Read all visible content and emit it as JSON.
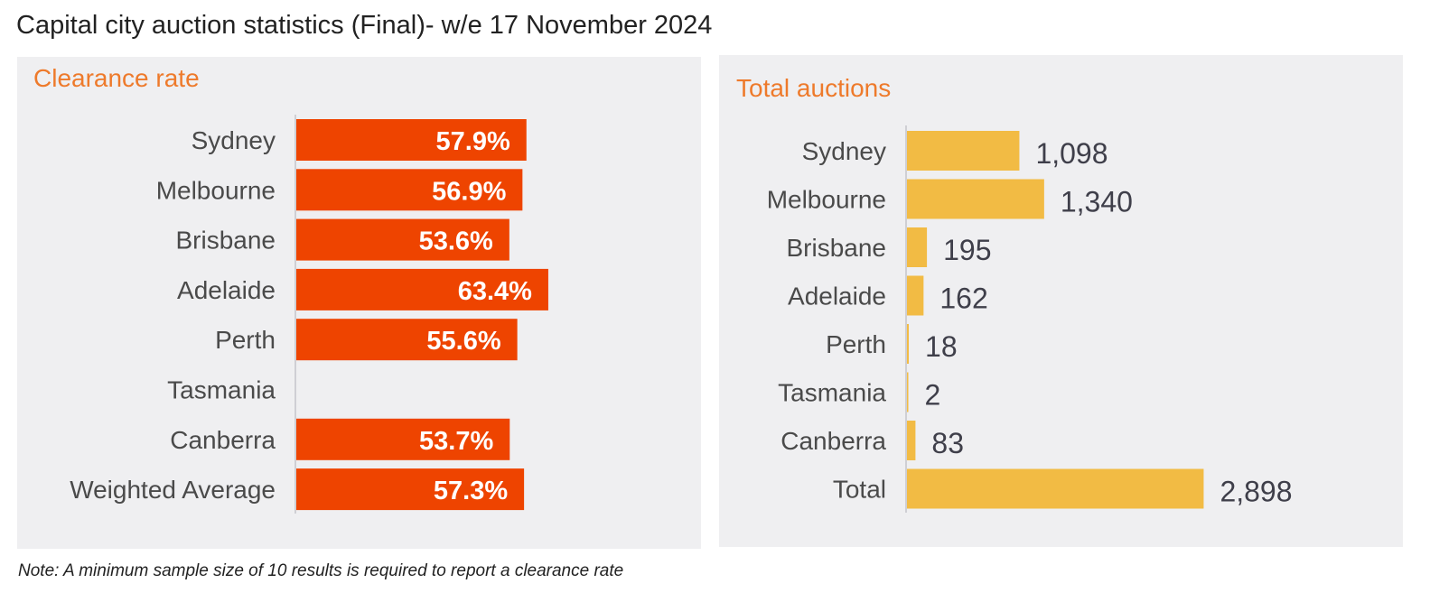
{
  "title": "Capital city auction statistics (Final)- w/e 17 November 2024",
  "note": "Note: A minimum sample size of 10 results is required to report a clearance rate",
  "colors": {
    "clearance_bar": "#ee4400",
    "auctions_bar": "#f2bb44",
    "panel_background": "#efeff1",
    "panel_title": "#ee7a2b"
  },
  "chart_data": [
    {
      "type": "bar",
      "orientation": "horizontal",
      "title": "Clearance rate",
      "categories": [
        "Sydney",
        "Melbourne",
        "Brisbane",
        "Adelaide",
        "Perth",
        "Tasmania",
        "Canberra",
        "Weighted Average"
      ],
      "values": [
        57.9,
        56.9,
        53.6,
        63.4,
        55.6,
        null,
        53.7,
        57.3
      ],
      "labels": [
        "57.9%",
        "56.9%",
        "53.6%",
        "63.4%",
        "55.6%",
        "",
        "53.7%",
        "57.3%"
      ],
      "xlim": [
        0,
        100
      ],
      "grid": false,
      "legend": "none"
    },
    {
      "type": "bar",
      "orientation": "horizontal",
      "title": "Total auctions",
      "categories": [
        "Sydney",
        "Melbourne",
        "Brisbane",
        "Adelaide",
        "Perth",
        "Tasmania",
        "Canberra",
        "Total"
      ],
      "values": [
        1098,
        1340,
        195,
        162,
        18,
        2,
        83,
        2898
      ],
      "labels": [
        "1,098",
        "1,340",
        "195",
        "162",
        "18",
        "2",
        "83",
        "2,898"
      ],
      "xlim": [
        0,
        6000
      ],
      "grid": false,
      "legend": "none"
    }
  ]
}
